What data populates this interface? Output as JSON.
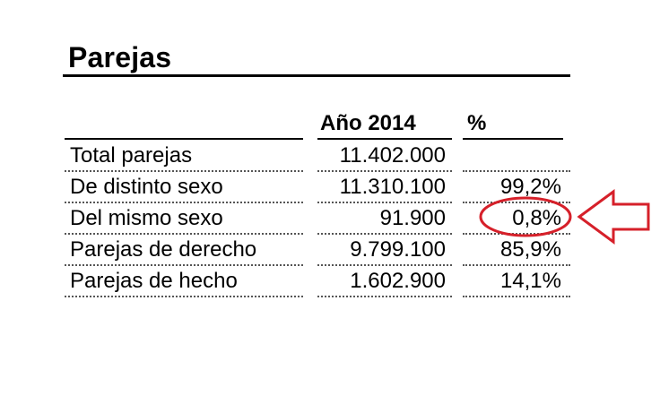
{
  "title": "Parejas",
  "columns": {
    "year": "Año 2014",
    "pct": "%"
  },
  "rows": [
    {
      "label": "Total parejas",
      "value": "11.402.000",
      "pct": ""
    },
    {
      "label": "De distinto sexo",
      "value": "11.310.100",
      "pct": "99,2%"
    },
    {
      "label": "Del mismo sexo",
      "value": "91.900",
      "pct": "0,8%"
    },
    {
      "label": "Parejas de derecho",
      "value": "9.799.100",
      "pct": "85,9%"
    },
    {
      "label": "Parejas de hecho",
      "value": "1.602.900",
      "pct": "14,1%"
    }
  ],
  "annotation": {
    "highlighted_row": 2,
    "color": "#d6202a",
    "shapes": [
      "circle-highlight",
      "arrow-left-icon"
    ]
  }
}
